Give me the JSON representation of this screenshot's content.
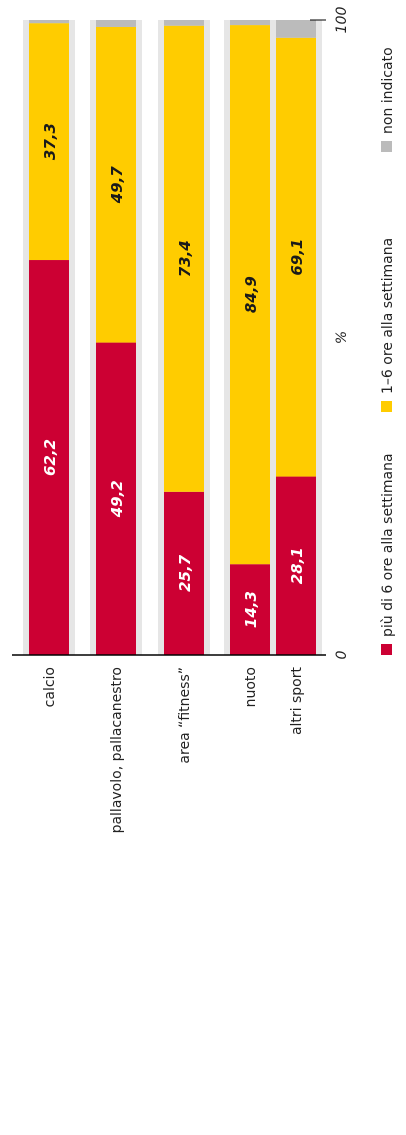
{
  "chart_data": {
    "type": "bar",
    "stacked": true,
    "orientation": "horizontal",
    "categories": [
      "calcio",
      "pallavolo, pallacanestro",
      "area “fitness”",
      "nuoto",
      "altri sport"
    ],
    "series": [
      {
        "name": "più di 6 ore alla settimana",
        "values": [
          62.2,
          49.2,
          25.7,
          14.3,
          28.1
        ],
        "labels": [
          "62,2",
          "49,2",
          "25,7",
          "14,3",
          "28,1"
        ],
        "color": "#cc0033"
      },
      {
        "name": "1–6 ore alla settimana",
        "values": [
          37.3,
          49.7,
          73.4,
          84.9,
          69.1
        ],
        "labels": [
          "37,3",
          "49,7",
          "73,4",
          "84,9",
          "69,1"
        ],
        "color": "#ffcc00"
      },
      {
        "name": "non indicato",
        "values": [
          0.5,
          1.1,
          0.9,
          0.8,
          2.8
        ],
        "labels": [
          "",
          "",
          "",
          "",
          ""
        ],
        "color": "#bbbbbb"
      }
    ],
    "axis": {
      "min_label": "0",
      "mid_label": "%",
      "max_label": "100",
      "min": 0,
      "max": 100
    },
    "background_band_color": "#e6e6e6",
    "legend_placement": "bottom",
    "rotated": true
  }
}
